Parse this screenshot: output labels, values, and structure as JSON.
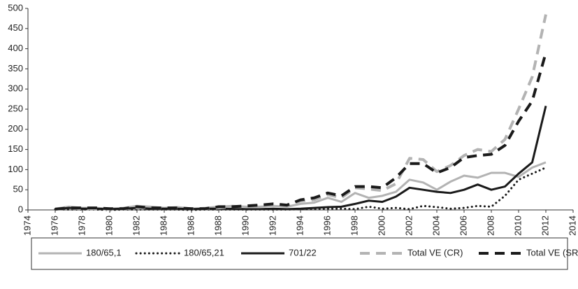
{
  "chart_data": {
    "type": "line",
    "x": [
      1976,
      1977,
      1978,
      1979,
      1980,
      1981,
      1982,
      1983,
      1984,
      1985,
      1986,
      1987,
      1988,
      1989,
      1990,
      1991,
      1992,
      1993,
      1994,
      1995,
      1996,
      1997,
      1998,
      1999,
      2000,
      2001,
      2002,
      2003,
      2004,
      2005,
      2006,
      2007,
      2008,
      2009,
      2010,
      2011,
      2012
    ],
    "xlim": [
      1974,
      2014
    ],
    "xticks": [
      1974,
      1976,
      1978,
      1980,
      1982,
      1984,
      1986,
      1988,
      1990,
      1992,
      1994,
      1996,
      1998,
      2000,
      2002,
      2004,
      2006,
      2008,
      2010,
      2012,
      2014
    ],
    "ylim": [
      0,
      500
    ],
    "yticks": [
      0,
      50,
      100,
      150,
      200,
      250,
      300,
      350,
      400,
      450,
      500
    ],
    "legend": "bottom",
    "series": [
      {
        "name": "180/65,1",
        "color": "#b3b3b3",
        "style": "solid",
        "values": [
          3,
          8,
          5,
          5,
          3,
          5,
          10,
          8,
          5,
          7,
          3,
          5,
          8,
          10,
          8,
          8,
          10,
          8,
          15,
          18,
          30,
          20,
          42,
          30,
          35,
          45,
          75,
          68,
          50,
          70,
          85,
          80,
          92,
          92,
          82,
          105,
          118
        ]
      },
      {
        "name": "180/65,21",
        "color": "#1a1a1a",
        "style": "dotted",
        "values": [
          2,
          1,
          1,
          1,
          0,
          1,
          1,
          1,
          1,
          1,
          0,
          1,
          1,
          1,
          1,
          1,
          1,
          1,
          2,
          2,
          3,
          3,
          2,
          8,
          3,
          5,
          2,
          10,
          7,
          3,
          5,
          10,
          8,
          35,
          75,
          90,
          105
        ]
      },
      {
        "name": "701/22",
        "color": "#1a1a1a",
        "style": "solid",
        "values": [
          2,
          5,
          3,
          3,
          2,
          3,
          5,
          3,
          3,
          3,
          2,
          3,
          3,
          3,
          2,
          2,
          3,
          2,
          3,
          5,
          7,
          8,
          15,
          23,
          20,
          33,
          55,
          50,
          45,
          42,
          50,
          63,
          50,
          58,
          90,
          118,
          258
        ]
      },
      {
        "name": "Total VE (CR)",
        "color": "#b3b3b3",
        "style": "dashed",
        "values": [
          2,
          5,
          3,
          3,
          2,
          3,
          5,
          5,
          5,
          5,
          3,
          3,
          5,
          8,
          8,
          10,
          12,
          12,
          22,
          25,
          38,
          30,
          55,
          52,
          48,
          65,
          128,
          125,
          95,
          110,
          135,
          150,
          145,
          175,
          250,
          330,
          485
        ]
      },
      {
        "name": "Total VE (SR)",
        "color": "#1a1a1a",
        "style": "dashed",
        "values": [
          2,
          5,
          5,
          5,
          3,
          3,
          8,
          5,
          5,
          5,
          3,
          3,
          8,
          8,
          10,
          12,
          15,
          12,
          25,
          30,
          42,
          35,
          58,
          58,
          55,
          80,
          115,
          115,
          92,
          105,
          130,
          135,
          138,
          160,
          220,
          270,
          390
        ]
      }
    ]
  }
}
